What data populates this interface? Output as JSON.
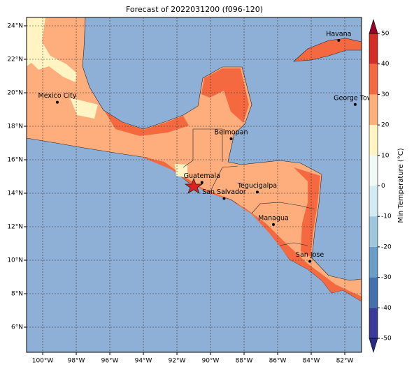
{
  "map": {
    "title": "Forecast of 2022031200 (f096-120)",
    "lonlim": [
      -100.96,
      -81.0
    ],
    "latlim": [
      4.5,
      24.5
    ],
    "lonticks": [
      {
        "value": -100,
        "label": "100°W"
      },
      {
        "value": -98,
        "label": "98°W"
      },
      {
        "value": -96,
        "label": "96°W"
      },
      {
        "value": -94,
        "label": "94°W"
      },
      {
        "value": -92,
        "label": "92°W"
      },
      {
        "value": -90,
        "label": "90°W"
      },
      {
        "value": -88,
        "label": "88°W"
      },
      {
        "value": -86,
        "label": "86°W"
      },
      {
        "value": -84,
        "label": "84°W"
      },
      {
        "value": -82,
        "label": "82°W"
      }
    ],
    "latticks": [
      {
        "value": 6,
        "label": "6°N"
      },
      {
        "value": 8,
        "label": "8°N"
      },
      {
        "value": 10,
        "label": "10°N"
      },
      {
        "value": 12,
        "label": "12°N"
      },
      {
        "value": 14,
        "label": "14°N"
      },
      {
        "value": 16,
        "label": "16°N"
      },
      {
        "value": 18,
        "label": "18°N"
      },
      {
        "value": 20,
        "label": "20°N"
      },
      {
        "value": 22,
        "label": "22°N"
      },
      {
        "value": 24,
        "label": "24°N"
      }
    ],
    "grid": true,
    "cities": [
      {
        "name": "Mexico City",
        "lon": -99.13,
        "lat": 19.43
      },
      {
        "name": "Belmopan",
        "lon": -88.77,
        "lat": 17.25
      },
      {
        "name": "Guatemala",
        "lon": -90.51,
        "lat": 14.64
      },
      {
        "name": "San Salvador",
        "lon": -89.19,
        "lat": 13.69
      },
      {
        "name": "Tegucigalpa",
        "lon": -87.21,
        "lat": 14.07
      },
      {
        "name": "Managua",
        "lon": -86.25,
        "lat": 12.13
      },
      {
        "name": "San Jose",
        "lon": -84.08,
        "lat": 9.93
      },
      {
        "name": "Havana",
        "lon": -82.36,
        "lat": 23.13
      },
      {
        "name": "George Town",
        "lon": -81.38,
        "lat": 19.3
      }
    ],
    "colorbar": {
      "label": "Min Temperature (°C)",
      "ticks": [
        -50,
        -40,
        -30,
        -20,
        -10,
        0,
        10,
        20,
        30,
        40,
        50
      ],
      "colors": [
        "#3a3b98",
        "#4470b0",
        "#6a9dc8",
        "#9cc7df",
        "#d2ebf3",
        "#f0f9f6",
        "#fff4c2",
        "#fdb07a",
        "#f4693f",
        "#d42d26"
      ],
      "under_color": "#282a85",
      "over_color": "#9b0028"
    }
  }
}
